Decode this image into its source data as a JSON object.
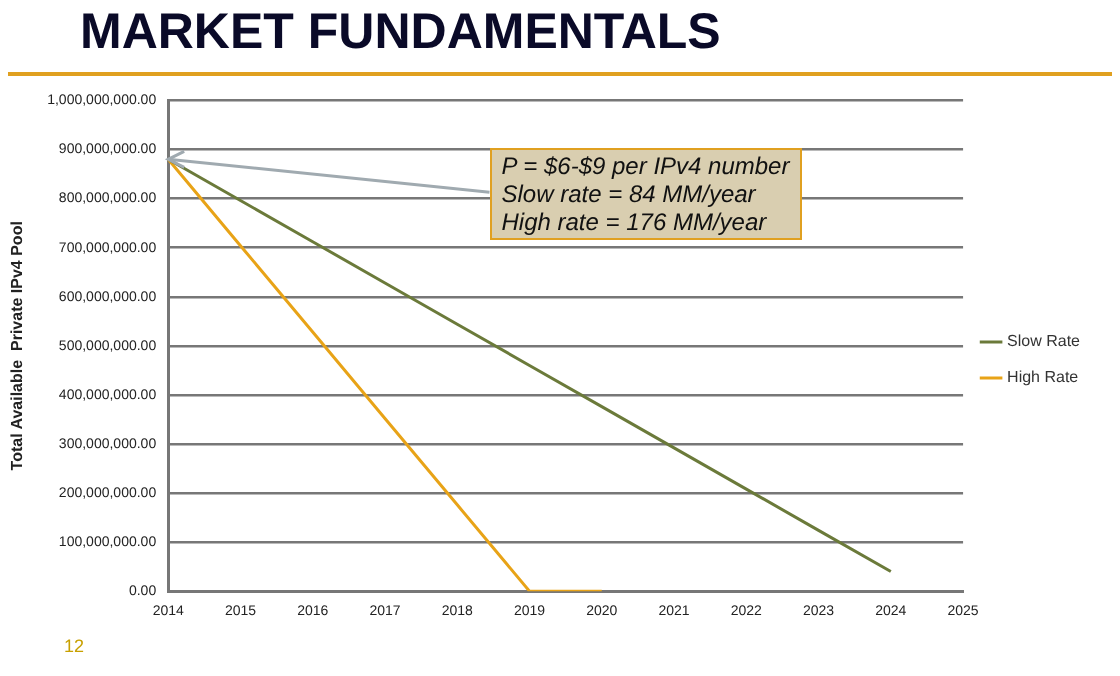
{
  "chart_data": {
    "type": "line",
    "title": "MARKET FUNDAMENTALS",
    "ylabel": "Total Available  Private IPv4 Pool",
    "categories": [
      "2014",
      "2015",
      "2016",
      "2017",
      "2018",
      "2019",
      "2020",
      "2021",
      "2022",
      "2023",
      "2024",
      "2025"
    ],
    "series": [
      {
        "name": "Slow Rate",
        "color": "#6b7a3a",
        "values": [
          880000000,
          796000000,
          712000000,
          628000000,
          544000000,
          460000000,
          376000000,
          292000000,
          208000000,
          124000000,
          40000000,
          null
        ]
      },
      {
        "name": "High Rate",
        "color": "#e8a317",
        "values": [
          880000000,
          704000000,
          528000000,
          352000000,
          176000000,
          0,
          0,
          null,
          null,
          null,
          null,
          null
        ]
      }
    ],
    "ylim": [
      0,
      1000000000
    ],
    "yticks": [
      {
        "value": 0,
        "label": "0.00"
      },
      {
        "value": 100000000,
        "label": "100,000,000.00"
      },
      {
        "value": 200000000,
        "label": "200,000,000.00"
      },
      {
        "value": 300000000,
        "label": "300,000,000.00"
      },
      {
        "value": 400000000,
        "label": "400,000,000.00"
      },
      {
        "value": 500000000,
        "label": "500,000,000.00"
      },
      {
        "value": 600000000,
        "label": "600,000,000.00"
      },
      {
        "value": 700000000,
        "label": "700,000,000.00"
      },
      {
        "value": 800000000,
        "label": "800,000,000.00"
      },
      {
        "value": 900000000,
        "label": "900,000,000.00"
      },
      {
        "value": 1000000000,
        "label": "1,000,000,000.00"
      }
    ],
    "annotations": [
      {
        "text": "P = $6-$9 per IPv4 number\nSlow rate = 84 MM/year\nHigh rate = 176 MM/year",
        "x": "2014",
        "y": 880000000
      },
      "12"
    ],
    "grid": "y",
    "legend": "right",
    "marker": "none",
    "line_style": "solid"
  }
}
